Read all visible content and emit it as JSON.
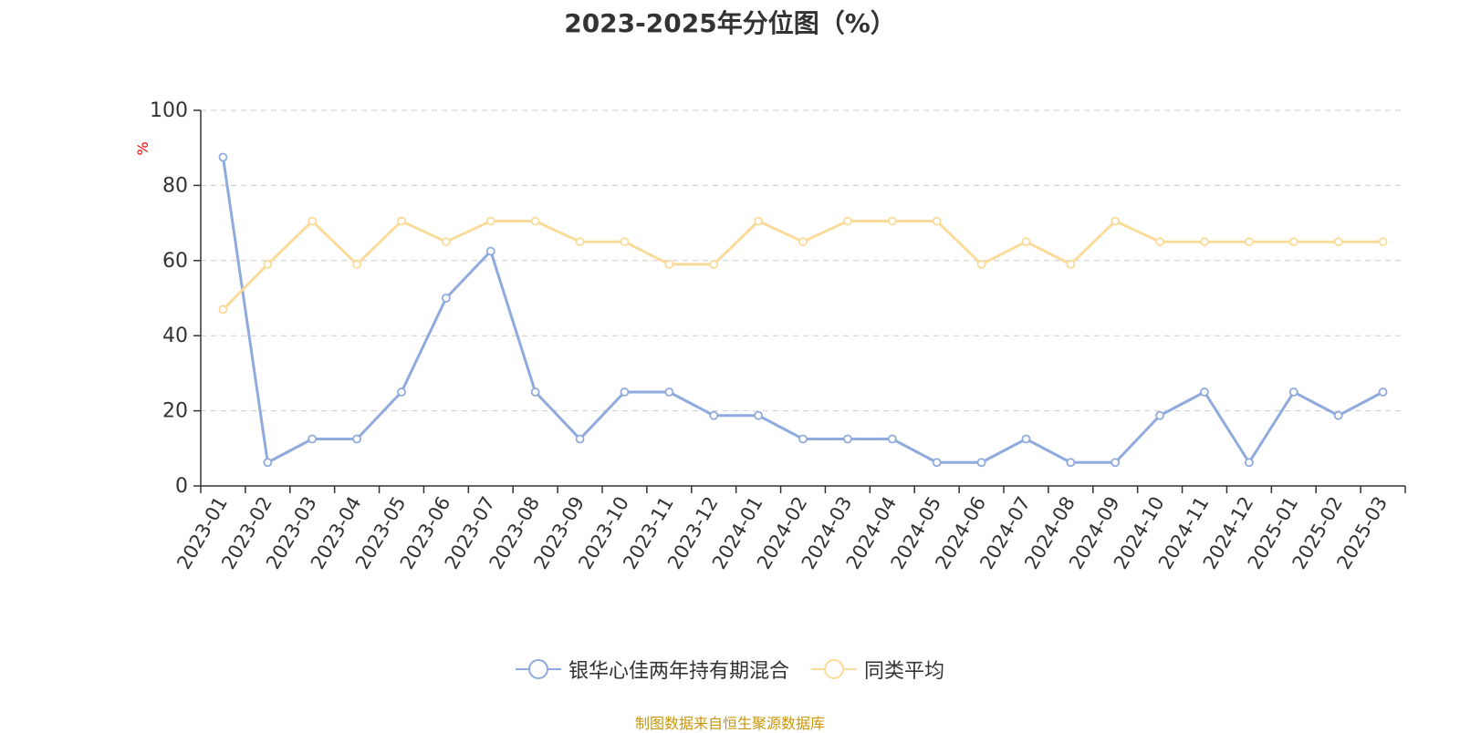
{
  "source_note": "制图数据来自恒生聚源数据库",
  "colors": {
    "series_0": "#8faadc",
    "series_1": "#fbdb9a",
    "axis": "#333333",
    "grid": "#cccccc",
    "unit": "#ff0000",
    "source": "#c8960c"
  },
  "chart_data": {
    "type": "line",
    "title": "2023-2025年分位图（%）",
    "xlabel": "",
    "ylabel": "%",
    "ylim": [
      0,
      100
    ],
    "yticks": [
      0,
      20,
      40,
      60,
      80,
      100
    ],
    "grid": true,
    "legend_position": "bottom-center",
    "categories": [
      "2023-01",
      "2023-02",
      "2023-03",
      "2023-04",
      "2023-05",
      "2023-06",
      "2023-07",
      "2023-08",
      "2023-09",
      "2023-10",
      "2023-11",
      "2023-12",
      "2024-01",
      "2024-02",
      "2024-03",
      "2024-04",
      "2024-05",
      "2024-06",
      "2024-07",
      "2024-08",
      "2024-09",
      "2024-10",
      "2024-11",
      "2024-12",
      "2025-01",
      "2025-02",
      "2025-03"
    ],
    "series": [
      {
        "name": "银华心佳两年持有期混合",
        "values": [
          87.5,
          6.25,
          12.5,
          12.5,
          25,
          50,
          62.5,
          25,
          12.5,
          25,
          25,
          18.75,
          18.75,
          12.5,
          12.5,
          12.5,
          6.25,
          6.25,
          12.5,
          6.25,
          6.25,
          18.75,
          25,
          6.25,
          25,
          18.75,
          25
        ]
      },
      {
        "name": "同类平均",
        "values": [
          47,
          59,
          70.5,
          59,
          70.5,
          65,
          70.5,
          70.5,
          65,
          65,
          59,
          59,
          70.5,
          65,
          70.5,
          70.5,
          70.5,
          59,
          65,
          59,
          70.5,
          65,
          65,
          65,
          65,
          65,
          65
        ]
      }
    ]
  }
}
